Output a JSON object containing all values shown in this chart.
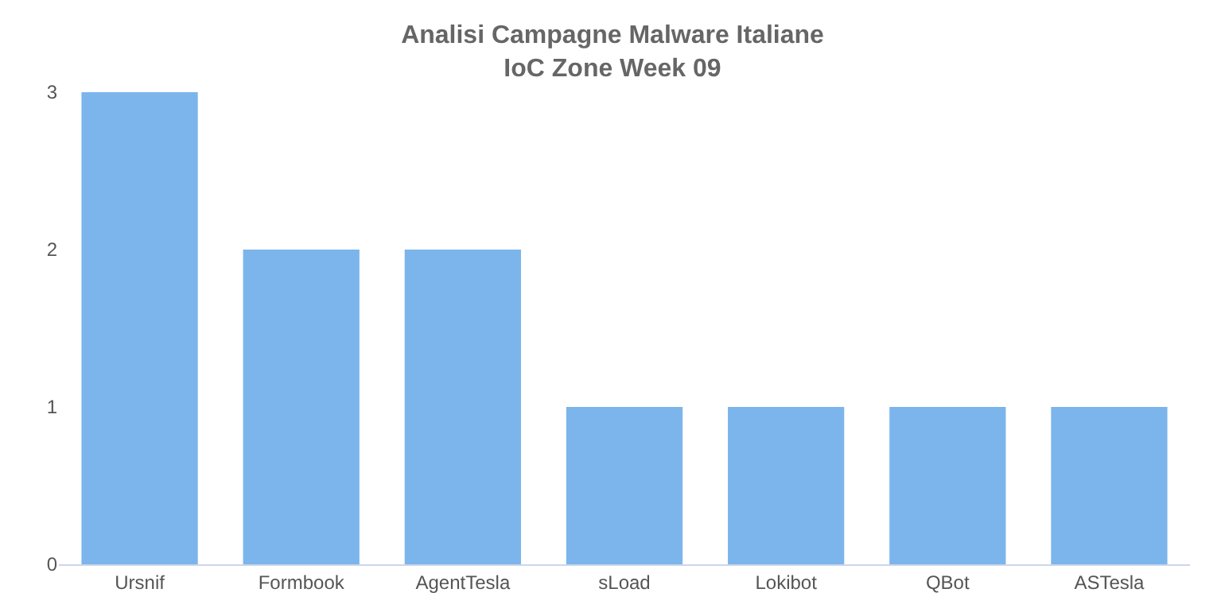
{
  "chart_data": {
    "type": "bar",
    "title": "Analisi Campagne Malware Italiane",
    "subtitle": "IoC Zone Week 09",
    "categories": [
      "Ursnif",
      "Formbook",
      "AgentTesla",
      "sLoad",
      "Lokibot",
      "QBot",
      "ASTesla"
    ],
    "values": [
      3,
      2,
      2,
      1,
      1,
      1,
      1
    ],
    "color": "#7cb5ec",
    "ylim": [
      0,
      3
    ],
    "yticks": [
      0,
      1,
      2,
      3
    ],
    "grid": false,
    "legend": false
  }
}
